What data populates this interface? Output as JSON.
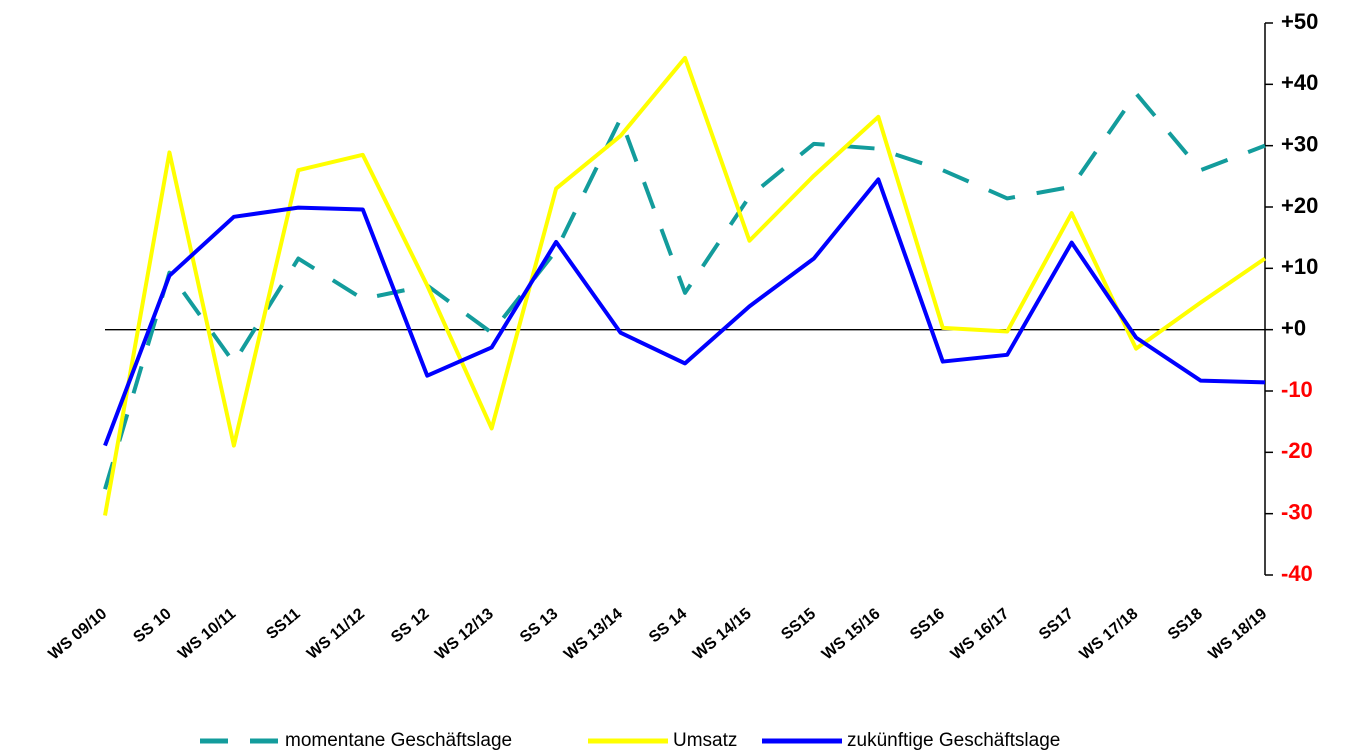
{
  "chart_data": {
    "type": "line",
    "categories": [
      "WS 09/10",
      "SS 10",
      "WS 10/11",
      "SS11",
      "WS 11/12",
      "SS 12",
      "WS 12/13",
      "SS 13",
      "WS 13/14",
      "SS 14",
      "WS 14/15",
      "SS15",
      "WS 15/16",
      "SS16",
      "WS 16/17",
      "SS17",
      "WS 17/18",
      "SS18",
      "WS 18/19"
    ],
    "series": [
      {
        "name": "momentane Geschäftslage",
        "color": "#139c9c",
        "line_style": "dashed",
        "values": [
          -26,
          9.3,
          -5.4,
          11.6,
          5,
          7.2,
          -0.5,
          12.9,
          34.4,
          6,
          21.7,
          30.3,
          29.5,
          26,
          21.4,
          23.3,
          38.5,
          26,
          30
        ]
      },
      {
        "name": "Umsatz",
        "color": "#ffff00",
        "line_style": "solid",
        "values": [
          -30.3,
          28.9,
          -18.9,
          26,
          28.5,
          7.2,
          -16.1,
          23,
          31.6,
          44.3,
          14.5,
          25.1,
          34.7,
          0.3,
          -0.3,
          19,
          -3.1,
          4.4,
          11.6
        ]
      },
      {
        "name": "zukünftige Geschäftslage",
        "color": "#0000ff",
        "line_style": "solid",
        "values": [
          -18.9,
          8.8,
          18.4,
          19.9,
          19.6,
          -7.5,
          -2.9,
          14.3,
          -0.5,
          -5.5,
          3.8,
          11.6,
          24.5,
          -5.2,
          -4.1,
          14.2,
          -1.3,
          -8.3,
          -8.6
        ]
      }
    ],
    "ylim": [
      -40,
      50
    ],
    "yticks": [
      {
        "value": 50,
        "label": "+50"
      },
      {
        "value": 40,
        "label": "+40"
      },
      {
        "value": 30,
        "label": "+30"
      },
      {
        "value": 20,
        "label": "+20"
      },
      {
        "value": 10,
        "label": "+10"
      },
      {
        "value": 0,
        "label": "+0"
      },
      -10,
      -20,
      -30,
      -40
    ],
    "y_axis_side": "right",
    "negative_tick_color": "#ff0000",
    "legend_position": "bottom"
  }
}
